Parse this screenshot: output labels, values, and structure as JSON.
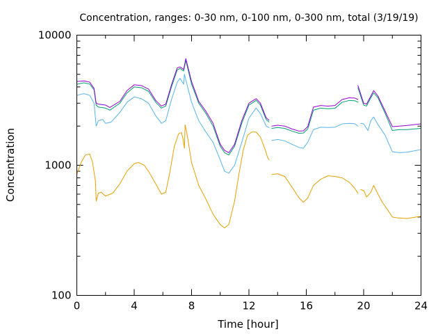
{
  "chart_data": {
    "type": "line",
    "title": "Concentration, ranges: 0-30 nm, 0-100 nm, 0-300 nm, total (3/19/19)",
    "xlabel": "Time [hour]",
    "ylabel": "Concentration",
    "xlim": [
      0,
      24
    ],
    "ylim": [
      100,
      10000
    ],
    "yscale": "log",
    "grid": false,
    "legend": "none",
    "x_ticks": [
      0,
      4,
      8,
      12,
      16,
      20,
      24
    ],
    "x_minor_ticks": [
      2,
      6,
      10,
      14,
      18,
      22
    ],
    "y_ticks": [
      100,
      1000,
      10000
    ],
    "y_minor_ticks": [
      200,
      300,
      400,
      500,
      600,
      700,
      800,
      900,
      2000,
      3000,
      4000,
      5000,
      6000,
      7000,
      8000,
      9000
    ],
    "series": [
      {
        "color": "#e69f00",
        "segments": [
          [
            [
              0,
              850
            ],
            [
              0.3,
              1050
            ],
            [
              0.6,
              1200
            ],
            [
              0.9,
              1220
            ],
            [
              1.1,
              1050
            ],
            [
              1.3,
              750
            ],
            [
              1.35,
              530
            ],
            [
              1.5,
              610
            ],
            [
              1.7,
              620
            ],
            [
              2.0,
              580
            ],
            [
              2.5,
              610
            ],
            [
              3.0,
              720
            ],
            [
              3.5,
              900
            ],
            [
              4.0,
              1030
            ],
            [
              4.3,
              1050
            ],
            [
              4.7,
              1000
            ],
            [
              5.0,
              900
            ],
            [
              5.5,
              720
            ],
            [
              5.9,
              600
            ],
            [
              6.2,
              620
            ],
            [
              6.5,
              900
            ],
            [
              6.8,
              1400
            ],
            [
              7.1,
              1750
            ],
            [
              7.3,
              1780
            ],
            [
              7.4,
              1600
            ],
            [
              7.5,
              1350
            ],
            [
              7.55,
              2050
            ],
            [
              7.7,
              1700
            ],
            [
              8.0,
              1050
            ],
            [
              8.5,
              700
            ],
            [
              9.0,
              550
            ],
            [
              9.5,
              420
            ],
            [
              10.0,
              350
            ],
            [
              10.3,
              330
            ],
            [
              10.6,
              350
            ],
            [
              11.0,
              530
            ],
            [
              11.3,
              850
            ],
            [
              11.6,
              1300
            ],
            [
              11.9,
              1700
            ],
            [
              12.2,
              1800
            ],
            [
              12.5,
              1800
            ],
            [
              12.8,
              1650
            ],
            [
              13.1,
              1350
            ],
            [
              13.3,
              1150
            ],
            [
              13.4,
              1100
            ]
          ],
          [
            [
              13.6,
              850
            ],
            [
              14.0,
              860
            ],
            [
              14.5,
              820
            ],
            [
              15.0,
              680
            ],
            [
              15.5,
              560
            ],
            [
              15.8,
              520
            ],
            [
              16.1,
              560
            ],
            [
              16.5,
              700
            ],
            [
              17.0,
              780
            ],
            [
              17.5,
              830
            ],
            [
              18.0,
              820
            ],
            [
              18.5,
              800
            ],
            [
              19.0,
              740
            ],
            [
              19.4,
              660
            ],
            [
              19.6,
              610
            ]
          ],
          [
            [
              19.8,
              650
            ],
            [
              20.0,
              640
            ],
            [
              20.2,
              570
            ],
            [
              20.5,
              620
            ],
            [
              20.7,
              700
            ],
            [
              21.0,
              600
            ],
            [
              21.3,
              520
            ],
            [
              21.7,
              450
            ],
            [
              22.0,
              400
            ],
            [
              22.3,
              395
            ],
            [
              23.0,
              390
            ],
            [
              24.0,
              405
            ]
          ]
        ]
      },
      {
        "color": "#56b4e9",
        "segments": [
          [
            [
              0,
              3450
            ],
            [
              0.5,
              3550
            ],
            [
              0.9,
              3450
            ],
            [
              1.2,
              3000
            ],
            [
              1.35,
              2000
            ],
            [
              1.5,
              2200
            ],
            [
              1.8,
              2250
            ],
            [
              2.0,
              2100
            ],
            [
              2.4,
              2150
            ],
            [
              3.0,
              2550
            ],
            [
              3.5,
              3050
            ],
            [
              4.0,
              3350
            ],
            [
              4.5,
              3250
            ],
            [
              5.0,
              3000
            ],
            [
              5.5,
              2400
            ],
            [
              5.9,
              2100
            ],
            [
              6.2,
              2200
            ],
            [
              6.6,
              3200
            ],
            [
              7.0,
              4350
            ],
            [
              7.2,
              4650
            ],
            [
              7.45,
              4200
            ],
            [
              7.5,
              5000
            ],
            [
              7.7,
              4100
            ],
            [
              8.0,
              3050
            ],
            [
              8.5,
              2200
            ],
            [
              9.0,
              1800
            ],
            [
              9.5,
              1500
            ],
            [
              10.0,
              1100
            ],
            [
              10.3,
              900
            ],
            [
              10.6,
              870
            ],
            [
              11.0,
              1000
            ],
            [
              11.5,
              1500
            ],
            [
              12.0,
              2300
            ],
            [
              12.5,
              2750
            ],
            [
              12.8,
              2500
            ],
            [
              13.2,
              2000
            ],
            [
              13.4,
              1950
            ]
          ],
          [
            [
              13.6,
              1550
            ],
            [
              14.0,
              1580
            ],
            [
              14.5,
              1540
            ],
            [
              15.0,
              1450
            ],
            [
              15.5,
              1370
            ],
            [
              15.8,
              1350
            ],
            [
              16.1,
              1500
            ],
            [
              16.5,
              1880
            ],
            [
              17.0,
              1960
            ],
            [
              17.5,
              1950
            ],
            [
              18.0,
              1960
            ],
            [
              18.5,
              2080
            ],
            [
              19.0,
              2100
            ],
            [
              19.4,
              2080
            ],
            [
              19.6,
              2000
            ]
          ],
          [
            [
              19.8,
              2100
            ],
            [
              20.0,
              2080
            ],
            [
              20.3,
              1850
            ],
            [
              20.5,
              2200
            ],
            [
              20.7,
              2350
            ],
            [
              21.0,
              2050
            ],
            [
              21.5,
              1700
            ],
            [
              22.0,
              1270
            ],
            [
              22.5,
              1250
            ],
            [
              23.0,
              1260
            ],
            [
              24.0,
              1320
            ]
          ]
        ]
      },
      {
        "color": "#009e73",
        "segments": [
          [
            [
              0,
              4200
            ],
            [
              0.5,
              4300
            ],
            [
              0.9,
              4200
            ],
            [
              1.2,
              3800
            ],
            [
              1.35,
              2900
            ],
            [
              1.5,
              2800
            ],
            [
              2.0,
              2750
            ],
            [
              2.3,
              2650
            ],
            [
              3.0,
              3000
            ],
            [
              3.5,
              3600
            ],
            [
              4.0,
              4000
            ],
            [
              4.5,
              3950
            ],
            [
              5.0,
              3700
            ],
            [
              5.5,
              3050
            ],
            [
              5.9,
              2750
            ],
            [
              6.2,
              2850
            ],
            [
              6.6,
              4000
            ],
            [
              7.0,
              5400
            ],
            [
              7.2,
              5550
            ],
            [
              7.45,
              5300
            ],
            [
              7.6,
              6400
            ],
            [
              8.0,
              4200
            ],
            [
              8.5,
              3000
            ],
            [
              9.0,
              2500
            ],
            [
              9.5,
              2000
            ],
            [
              10.0,
              1400
            ],
            [
              10.3,
              1250
            ],
            [
              10.6,
              1200
            ],
            [
              11.0,
              1400
            ],
            [
              11.5,
              2100
            ],
            [
              12.0,
              2900
            ],
            [
              12.5,
              3150
            ],
            [
              12.8,
              2900
            ],
            [
              13.2,
              2250
            ],
            [
              13.4,
              2150
            ]
          ],
          [
            [
              13.6,
              1920
            ],
            [
              14.0,
              1950
            ],
            [
              14.5,
              1920
            ],
            [
              15.0,
              1830
            ],
            [
              15.5,
              1760
            ],
            [
              15.8,
              1770
            ],
            [
              16.1,
              1900
            ],
            [
              16.5,
              2650
            ],
            [
              17.0,
              2750
            ],
            [
              17.5,
              2720
            ],
            [
              18.0,
              2740
            ],
            [
              18.5,
              3050
            ],
            [
              19.0,
              3150
            ],
            [
              19.4,
              3130
            ],
            [
              19.6,
              3050
            ]
          ],
          [
            [
              19.6,
              3950
            ],
            [
              20.0,
              2900
            ],
            [
              20.2,
              2850
            ],
            [
              20.5,
              3300
            ],
            [
              20.7,
              3600
            ],
            [
              21.0,
              3300
            ],
            [
              21.5,
              2500
            ],
            [
              22.0,
              1850
            ],
            [
              22.5,
              1880
            ],
            [
              23.0,
              1880
            ],
            [
              24.0,
              1920
            ]
          ]
        ]
      },
      {
        "color": "#9400d3",
        "segments": [
          [
            [
              0,
              4400
            ],
            [
              0.5,
              4450
            ],
            [
              0.9,
              4350
            ],
            [
              1.2,
              3900
            ],
            [
              1.35,
              3000
            ],
            [
              1.5,
              2950
            ],
            [
              2.0,
              2900
            ],
            [
              2.3,
              2780
            ],
            [
              3.0,
              3100
            ],
            [
              3.5,
              3750
            ],
            [
              4.0,
              4150
            ],
            [
              4.5,
              4100
            ],
            [
              5.0,
              3850
            ],
            [
              5.5,
              3150
            ],
            [
              5.9,
              2850
            ],
            [
              6.2,
              2950
            ],
            [
              6.6,
              4150
            ],
            [
              7.0,
              5600
            ],
            [
              7.2,
              5700
            ],
            [
              7.45,
              5450
            ],
            [
              7.6,
              6600
            ],
            [
              8.0,
              4400
            ],
            [
              8.5,
              3100
            ],
            [
              9.0,
              2600
            ],
            [
              9.5,
              2100
            ],
            [
              10.0,
              1450
            ],
            [
              10.3,
              1300
            ],
            [
              10.6,
              1250
            ],
            [
              11.0,
              1450
            ],
            [
              11.5,
              2200
            ],
            [
              12.0,
              3000
            ],
            [
              12.5,
              3250
            ],
            [
              12.8,
              3000
            ],
            [
              13.2,
              2320
            ],
            [
              13.4,
              2220
            ]
          ],
          [
            [
              13.6,
              2000
            ],
            [
              14.0,
              2030
            ],
            [
              14.5,
              2000
            ],
            [
              15.0,
              1900
            ],
            [
              15.5,
              1830
            ],
            [
              15.8,
              1840
            ],
            [
              16.1,
              1980
            ],
            [
              16.5,
              2800
            ],
            [
              17.0,
              2880
            ],
            [
              17.5,
              2850
            ],
            [
              18.0,
              2880
            ],
            [
              18.5,
              3200
            ],
            [
              19.0,
              3300
            ],
            [
              19.4,
              3280
            ],
            [
              19.6,
              3200
            ]
          ],
          [
            [
              19.6,
              4100
            ],
            [
              20.0,
              3000
            ],
            [
              20.2,
              2950
            ],
            [
              20.5,
              3400
            ],
            [
              20.7,
              3750
            ],
            [
              21.0,
              3400
            ],
            [
              21.5,
              2600
            ],
            [
              22.0,
              1980
            ],
            [
              22.5,
              2000
            ],
            [
              23.0,
              2020
            ],
            [
              24.0,
              2080
            ]
          ]
        ]
      }
    ]
  }
}
